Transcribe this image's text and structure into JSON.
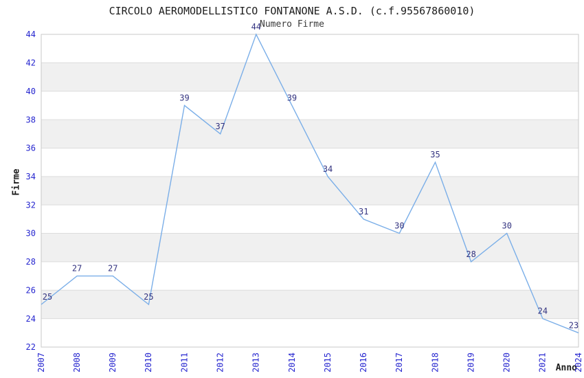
{
  "chart_data": {
    "type": "line",
    "title": "CIRCOLO AEROMODELLISTICO FONTANONE A.S.D. (c.f.95567860010)",
    "legend_label": "Numero Firme",
    "xlabel": "Anno",
    "ylabel": "Firme",
    "categories": [
      "2007",
      "2008",
      "2009",
      "2010",
      "2011",
      "2012",
      "2013",
      "2014",
      "2015",
      "2016",
      "2017",
      "2018",
      "2019",
      "2020",
      "2021",
      "2024"
    ],
    "values": [
      25,
      27,
      27,
      25,
      39,
      37,
      44,
      39,
      34,
      31,
      30,
      35,
      28,
      30,
      24,
      23
    ],
    "ylim": [
      22,
      44
    ],
    "yticks": [
      22,
      24,
      26,
      28,
      30,
      32,
      34,
      36,
      38,
      40,
      42,
      44
    ],
    "grid": true,
    "legend_position": "top-center",
    "data_labels": true,
    "colors": {
      "line": "#7aaee8",
      "tick_label": "#2525cf",
      "data_label": "#333380",
      "band": "#f0f0f0",
      "grid": "#dcdcdc",
      "border": "#c9c9c9",
      "text": "#1c1c1c"
    }
  }
}
